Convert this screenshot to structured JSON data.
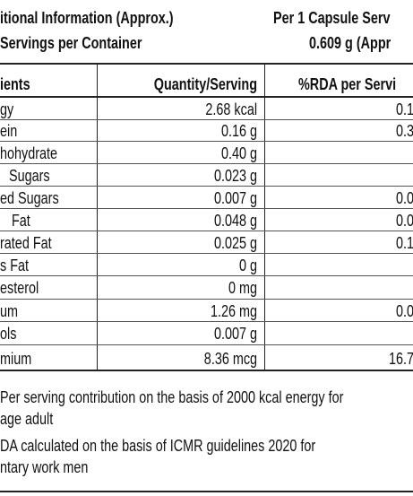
{
  "header": {
    "title_left": "itional Information (Approx.)",
    "servings": "Servings per Container",
    "title_right": "Per 1 Capsule Serv",
    "weight": "0.609 g (Appr"
  },
  "table": {
    "columns": [
      "ients",
      "Quantity/Serving",
      "%RDA per Servi"
    ],
    "rows": [
      [
        "gy",
        "2.68 kcal",
        "0.1"
      ],
      [
        "ein",
        "0.16 g",
        "0.3"
      ],
      [
        "hohydrate",
        "0.40 g",
        null
      ],
      [
        "Sugars",
        "0.023 g",
        null
      ],
      [
        "ed Sugars",
        "0.007 g",
        "0.0"
      ],
      [
        "Fat",
        "0.048 g",
        "0.0"
      ],
      [
        "rated Fat",
        "0.025 g",
        "0.1"
      ],
      [
        "s Fat",
        "0 g",
        null
      ],
      [
        "esterol",
        "0 mg",
        null
      ],
      [
        "um",
        "1.26 mg",
        "0.0"
      ],
      [
        "ols",
        "0.007 g",
        null
      ],
      [
        "mium",
        "8.36 mcg",
        "16.7"
      ]
    ]
  },
  "footnotes": [
    "Per serving contribution on the basis of 2000 kcal energy for",
    "age adult",
    "DA calculated on the basis of ICMR guidelines 2020 for",
    "ntary work men"
  ]
}
